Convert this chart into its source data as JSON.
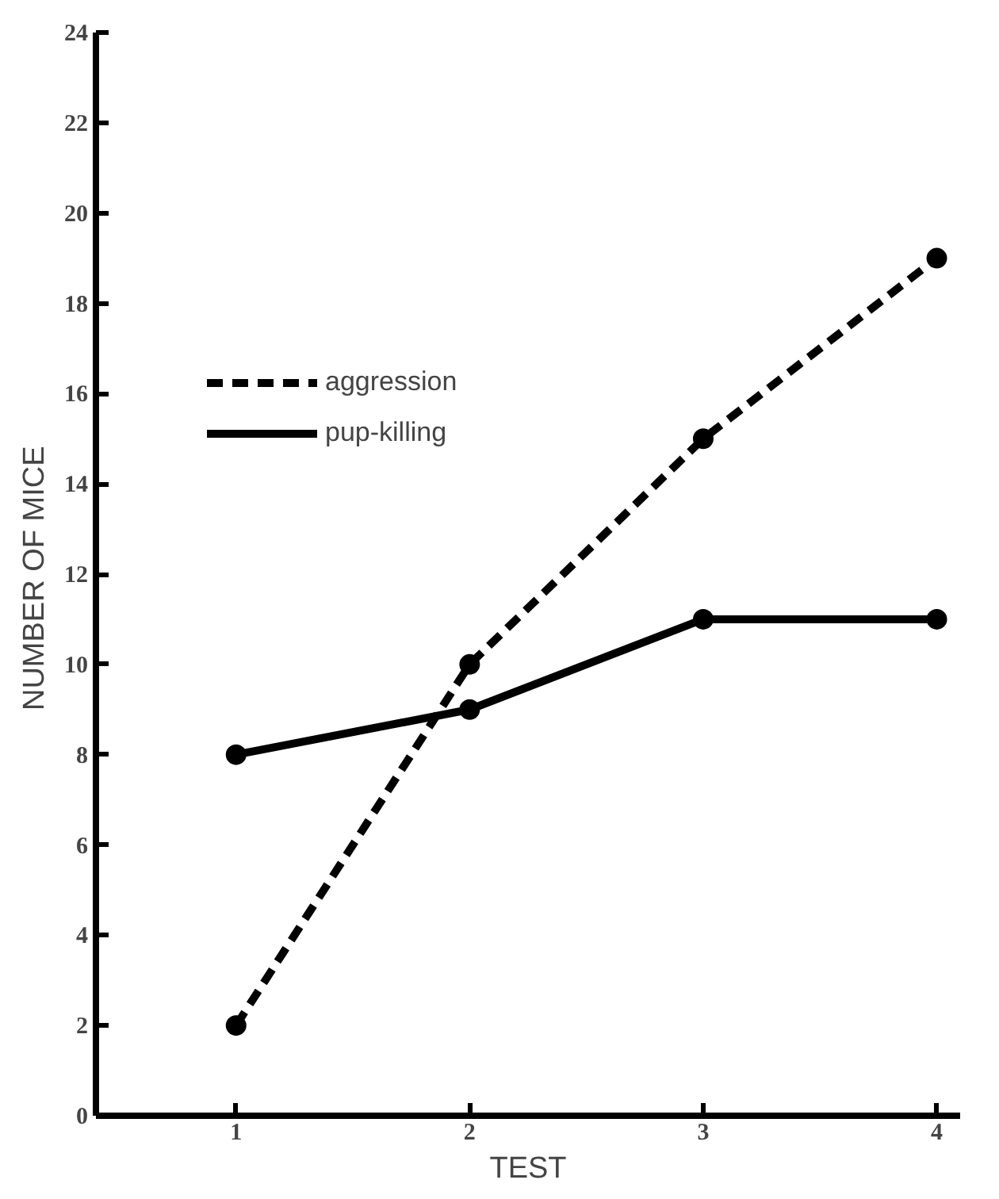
{
  "chart_data": {
    "type": "line",
    "xlabel": "TEST",
    "ylabel": "NUMBER  OF MICE",
    "x": [
      1,
      2,
      3,
      4
    ],
    "xlim": [
      0.4,
      4.1
    ],
    "xticks": [
      1,
      2,
      3,
      4
    ],
    "ylim": [
      0,
      24
    ],
    "yticks": [
      0,
      2,
      4,
      6,
      8,
      10,
      12,
      14,
      16,
      18,
      20,
      22,
      24
    ],
    "series": [
      {
        "name": "aggression",
        "color": "#000000",
        "values": [
          2,
          10,
          15,
          19
        ],
        "line_style": "dashed"
      },
      {
        "name": "pup-killing",
        "color": "#000000",
        "values": [
          8,
          9,
          11,
          11
        ],
        "line_style": "solid"
      }
    ],
    "marker": "circle",
    "grid": false,
    "legend": "top left"
  }
}
